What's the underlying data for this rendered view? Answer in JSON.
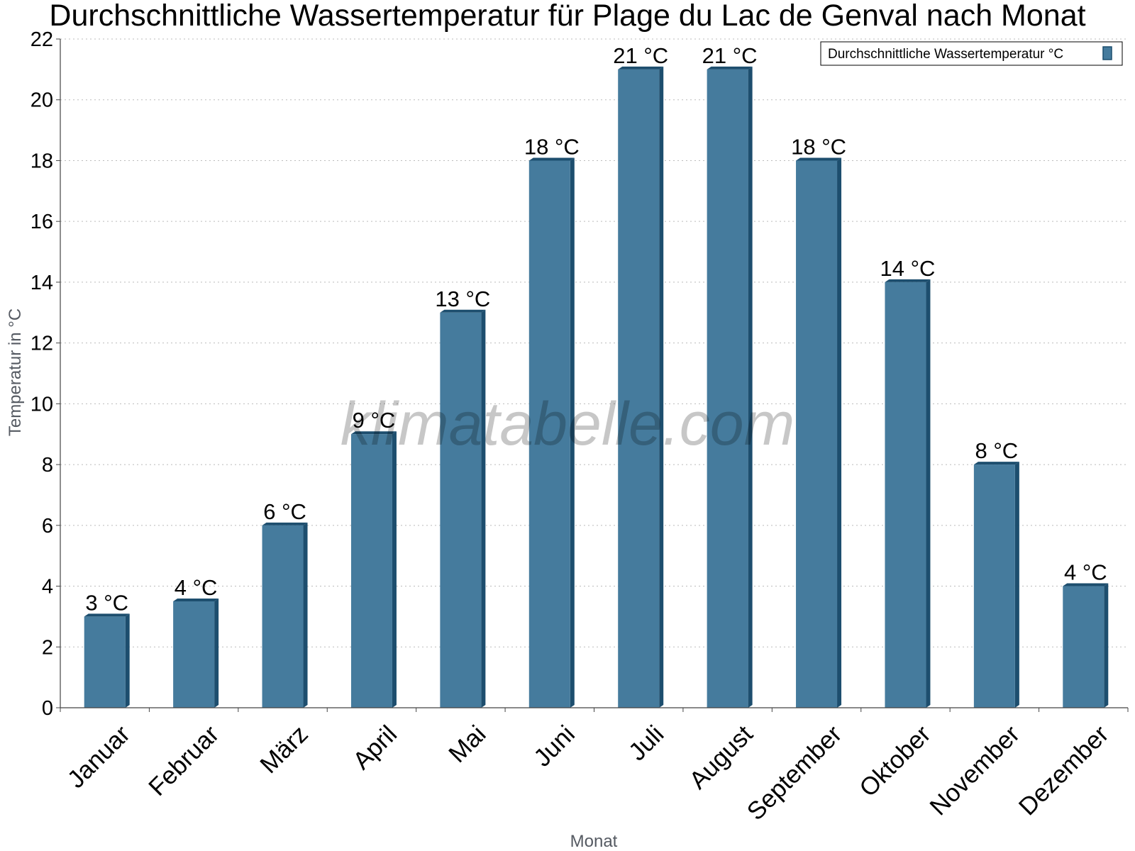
{
  "chart_data": {
    "type": "bar",
    "title": "Durchschnittliche Wassertemperatur für Plage du Lac de Genval nach Monat",
    "xlabel": "Monat",
    "ylabel": "Temperatur in °C",
    "categories": [
      "Januar",
      "Februar",
      "März",
      "April",
      "Mai",
      "Juni",
      "Juli",
      "August",
      "September",
      "Oktober",
      "November",
      "Dezember"
    ],
    "series": [
      {
        "name": "Durchschnittliche Wassertemperatur °C",
        "values": [
          3,
          3.5,
          6,
          9,
          13,
          18,
          21,
          21,
          18,
          14,
          8,
          4
        ],
        "labels": [
          "3 °C",
          "4 °C",
          "6 °C",
          "9 °C",
          "13 °C",
          "18 °C",
          "21 °C",
          "21 °C",
          "18 °C",
          "14 °C",
          "8 °C",
          "4 °C"
        ],
        "color": "#457b9d",
        "edge_color": "#1d4e6e"
      }
    ],
    "ylim": [
      0,
      22
    ],
    "yticks": [
      0,
      2,
      4,
      6,
      8,
      10,
      12,
      14,
      16,
      18,
      20,
      22
    ],
    "grid": true,
    "legend_position": "top-right"
  },
  "watermark": "klimatabelle.com"
}
